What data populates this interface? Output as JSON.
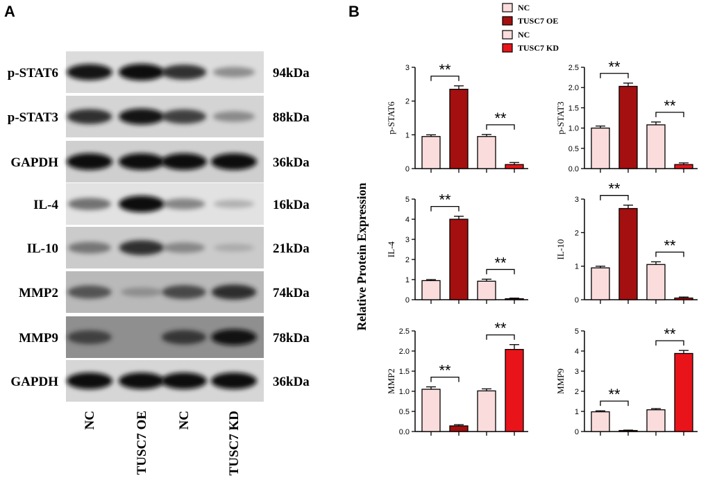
{
  "panel_a": {
    "letter": "A",
    "bands": [
      {
        "label": "p-STAT6",
        "kda": "94kDa",
        "bg": "#dcdcdc",
        "intensity": [
          0.95,
          1.0,
          0.85,
          0.45
        ]
      },
      {
        "label": "p-STAT3",
        "kda": "88kDa",
        "bg": "#d4d4d4",
        "intensity": [
          0.85,
          0.95,
          0.8,
          0.45
        ]
      },
      {
        "label": "GAPDH",
        "kda": "36kDa",
        "bg": "#cfcfcf",
        "intensity": [
          1.0,
          1.0,
          1.0,
          1.0
        ]
      },
      {
        "label": "IL-4",
        "kda": "16kDa",
        "bg": "#e2e2e2",
        "intensity": [
          0.6,
          1.0,
          0.5,
          0.25
        ]
      },
      {
        "label": "IL-10",
        "kda": "21kDa",
        "bg": "#cbcbcb",
        "intensity": [
          0.55,
          0.85,
          0.45,
          0.2
        ]
      },
      {
        "label": "MMP2",
        "kda": "74kDa",
        "bg": "#b9b9b9",
        "intensity": [
          0.7,
          0.35,
          0.75,
          0.85
        ]
      },
      {
        "label": "MMP9",
        "kda": "78kDa",
        "bg": "#8f8f8f",
        "intensity": [
          0.75,
          0.05,
          0.8,
          0.95
        ]
      },
      {
        "label": "GAPDH",
        "kda": "36kDa",
        "bg": "#d6d6d6",
        "intensity": [
          1.0,
          1.0,
          1.0,
          1.0
        ]
      }
    ],
    "lanes": [
      "NC",
      "TUSC7 OE",
      "NC",
      "TUSC7 KD"
    ]
  },
  "panel_b": {
    "letter": "B",
    "ylabel": "Relative Protein Expression",
    "significance": "**",
    "legend": [
      {
        "label": "NC",
        "color": "#fadcdc"
      },
      {
        "label": "TUSC7 OE",
        "color": "#a40f0f"
      },
      {
        "label": "NC",
        "color": "#fadcdc"
      },
      {
        "label": "TUSC7 KD",
        "color": "#e8141a"
      }
    ]
  },
  "chart_data": [
    {
      "type": "bar",
      "ylabel": "p-STAT6",
      "ylim": [
        0,
        3
      ],
      "ticks": [
        "0",
        "1",
        "2",
        "3"
      ],
      "categories": [
        "NC",
        "TUSC7 OE",
        "NC",
        "TUSC7 KD"
      ],
      "values": [
        0.95,
        2.35,
        0.95,
        0.12
      ],
      "errors": [
        0.05,
        0.1,
        0.06,
        0.06
      ]
    },
    {
      "type": "bar",
      "ylabel": "p-STAT3",
      "ylim": [
        0,
        2.5
      ],
      "ticks": [
        "0.0",
        "0.5",
        "1.0",
        "1.5",
        "2.0",
        "2.5"
      ],
      "categories": [
        "NC",
        "TUSC7 OE",
        "NC",
        "TUSC7 KD"
      ],
      "values": [
        1.0,
        2.03,
        1.08,
        0.1
      ],
      "errors": [
        0.05,
        0.08,
        0.07,
        0.04
      ]
    },
    {
      "type": "bar",
      "ylabel": "IL-4",
      "ylim": [
        0,
        5
      ],
      "ticks": [
        "0",
        "1",
        "2",
        "3",
        "4",
        "5"
      ],
      "categories": [
        "NC",
        "TUSC7 OE",
        "NC",
        "TUSC7 KD"
      ],
      "values": [
        0.95,
        4.0,
        0.92,
        0.05
      ],
      "errors": [
        0.05,
        0.15,
        0.1,
        0.03
      ]
    },
    {
      "type": "bar",
      "ylabel": "IL-10",
      "ylim": [
        0,
        3
      ],
      "ticks": [
        "0",
        "1",
        "2",
        "3"
      ],
      "categories": [
        "NC",
        "TUSC7 OE",
        "NC",
        "TUSC7 KD"
      ],
      "values": [
        0.95,
        2.72,
        1.05,
        0.05
      ],
      "errors": [
        0.05,
        0.1,
        0.08,
        0.03
      ]
    },
    {
      "type": "bar",
      "ylabel": "MMP2",
      "ylim": [
        0,
        2.5
      ],
      "ticks": [
        "0.0",
        "0.5",
        "1.0",
        "1.5",
        "2.0",
        "2.5"
      ],
      "categories": [
        "NC",
        "TUSC7 OE",
        "NC",
        "TUSC7 KD"
      ],
      "values": [
        1.05,
        0.14,
        1.01,
        2.04
      ],
      "errors": [
        0.06,
        0.03,
        0.05,
        0.12
      ]
    },
    {
      "type": "bar",
      "ylabel": "MMP9",
      "ylim": [
        0,
        5
      ],
      "ticks": [
        "0",
        "1",
        "2",
        "3",
        "4",
        "5"
      ],
      "categories": [
        "NC",
        "TUSC7 OE",
        "NC",
        "TUSC7 KD"
      ],
      "values": [
        0.98,
        0.05,
        1.08,
        3.88
      ],
      "errors": [
        0.05,
        0.02,
        0.06,
        0.15
      ]
    }
  ]
}
